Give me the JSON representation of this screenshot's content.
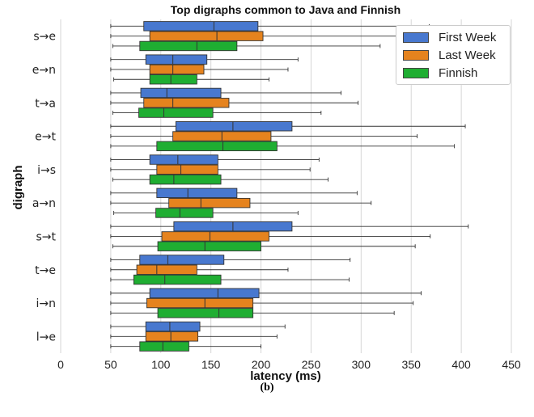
{
  "chart_data": {
    "type": "boxplot",
    "orientation": "horizontal",
    "title": "Top digraphs common to Java and Finnish",
    "xlabel": "latency (ms)",
    "ylabel": "digraph",
    "xlim": [
      0,
      450
    ],
    "xticks": [
      "0",
      "50",
      "100",
      "150",
      "200",
      "250",
      "300",
      "350",
      "400",
      "450"
    ],
    "grid": "x",
    "legend_position": "upper right",
    "categories": [
      "s→e",
      "e→n",
      "t→a",
      "e→t",
      "i→s",
      "a→n",
      "s→t",
      "t→e",
      "i→n",
      "l→e"
    ],
    "series": [
      {
        "name": "First Week",
        "color": "#4878cf",
        "boxes": [
          {
            "whisker_low": 50,
            "q1": 83,
            "median": 153,
            "q3": 197,
            "whisker_high": 368
          },
          {
            "whisker_low": 50,
            "q1": 85,
            "median": 112,
            "q3": 146,
            "whisker_high": 237
          },
          {
            "whisker_low": 50,
            "q1": 80,
            "median": 106,
            "q3": 160,
            "whisker_high": 280
          },
          {
            "whisker_low": 50,
            "q1": 115,
            "median": 172,
            "q3": 231,
            "whisker_high": 404
          },
          {
            "whisker_low": 50,
            "q1": 89,
            "median": 117,
            "q3": 157,
            "whisker_high": 258
          },
          {
            "whisker_low": 50,
            "q1": 96,
            "median": 127,
            "q3": 176,
            "whisker_high": 296
          },
          {
            "whisker_low": 50,
            "q1": 113,
            "median": 172,
            "q3": 231,
            "whisker_high": 407
          },
          {
            "whisker_low": 50,
            "q1": 79,
            "median": 107,
            "q3": 163,
            "whisker_high": 289
          },
          {
            "whisker_low": 50,
            "q1": 89,
            "median": 157,
            "q3": 198,
            "whisker_high": 360
          },
          {
            "whisker_low": 50,
            "q1": 85,
            "median": 109,
            "q3": 139,
            "whisker_high": 224
          }
        ]
      },
      {
        "name": "Last Week",
        "color": "#e5831e",
        "boxes": [
          {
            "whisker_low": 50,
            "q1": 89,
            "median": 156,
            "q3": 202,
            "whisker_high": 368
          },
          {
            "whisker_low": 50,
            "q1": 89,
            "median": 112,
            "q3": 143,
            "whisker_high": 227
          },
          {
            "whisker_low": 50,
            "q1": 83,
            "median": 112,
            "q3": 168,
            "whisker_high": 297
          },
          {
            "whisker_low": 50,
            "q1": 112,
            "median": 161,
            "q3": 210,
            "whisker_high": 356
          },
          {
            "whisker_low": 50,
            "q1": 96,
            "median": 120,
            "q3": 157,
            "whisker_high": 249
          },
          {
            "whisker_low": 50,
            "q1": 108,
            "median": 140,
            "q3": 189,
            "whisker_high": 310
          },
          {
            "whisker_low": 50,
            "q1": 101,
            "median": 149,
            "q3": 208,
            "whisker_high": 369
          },
          {
            "whisker_low": 50,
            "q1": 76,
            "median": 96,
            "q3": 136,
            "whisker_high": 227
          },
          {
            "whisker_low": 50,
            "q1": 86,
            "median": 144,
            "q3": 192,
            "whisker_high": 352
          },
          {
            "whisker_low": 50,
            "q1": 85,
            "median": 110,
            "q3": 137,
            "whisker_high": 216
          }
        ]
      },
      {
        "name": "Finnish",
        "color": "#1fae32",
        "boxes": [
          {
            "whisker_low": 52,
            "q1": 79,
            "median": 136,
            "q3": 176,
            "whisker_high": 319
          },
          {
            "whisker_low": 53,
            "q1": 89,
            "median": 110,
            "q3": 136,
            "whisker_high": 208
          },
          {
            "whisker_low": 52,
            "q1": 78,
            "median": 103,
            "q3": 152,
            "whisker_high": 260
          },
          {
            "whisker_low": 50,
            "q1": 96,
            "median": 162,
            "q3": 216,
            "whisker_high": 393
          },
          {
            "whisker_low": 52,
            "q1": 89,
            "median": 113,
            "q3": 160,
            "whisker_high": 267
          },
          {
            "whisker_low": 53,
            "q1": 95,
            "median": 119,
            "q3": 152,
            "whisker_high": 237
          },
          {
            "whisker_low": 52,
            "q1": 97,
            "median": 144,
            "q3": 200,
            "whisker_high": 354
          },
          {
            "whisker_low": 50,
            "q1": 73,
            "median": 104,
            "q3": 160,
            "whisker_high": 288
          },
          {
            "whisker_low": 50,
            "q1": 97,
            "median": 158,
            "q3": 192,
            "whisker_high": 333
          },
          {
            "whisker_low": 50,
            "q1": 79,
            "median": 102,
            "q3": 128,
            "whisker_high": 200
          }
        ]
      }
    ]
  },
  "caption": "(b)"
}
